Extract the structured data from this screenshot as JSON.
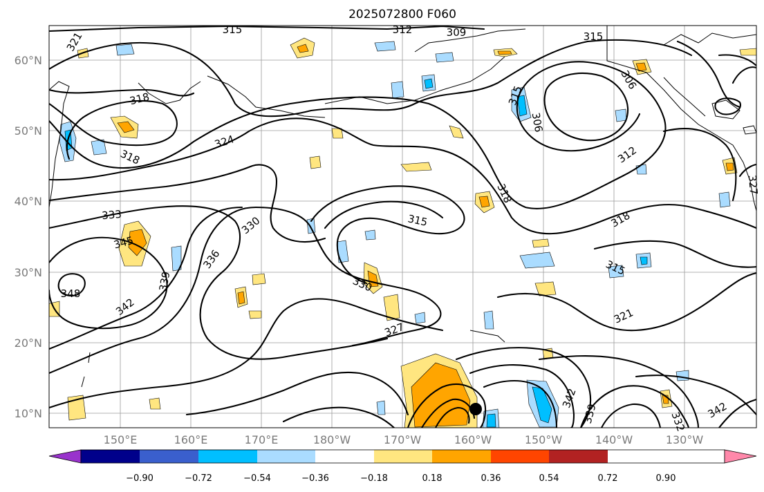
{
  "title": "2025072800 F060",
  "map": {
    "lat_ticks": [
      "60°N",
      "50°N",
      "40°N",
      "30°N",
      "20°N",
      "10°N"
    ],
    "lon_ticks": [
      "150°E",
      "160°E",
      "170°E",
      "180°W",
      "170°W",
      "160°W",
      "150°W",
      "140°W",
      "130°W"
    ],
    "contour_labels": [
      "321",
      "315",
      "312",
      "309",
      "315",
      "318",
      "306",
      "315",
      "306",
      "324",
      "318",
      "312",
      "327",
      "333",
      "330",
      "318",
      "315",
      "318",
      "345",
      "336",
      "315",
      "348",
      "339",
      "330",
      "342",
      "327",
      "321",
      "342",
      "339",
      "332",
      "342"
    ],
    "colors": {
      "contour": "#000000",
      "grid": "#9a9a9a",
      "tick_text": "#7a7a7a"
    }
  },
  "colorbar": {
    "ticks": [
      "−0.90",
      "−0.72",
      "−0.54",
      "−0.36",
      "−0.18",
      "0.18",
      "0.36",
      "0.54",
      "0.72",
      "0.90"
    ],
    "colors": [
      "#9933cc",
      "#00008b",
      "#3a5fcd",
      "#00bfff",
      "#aadcff",
      "#ffffff",
      "#ffe680",
      "#ffa500",
      "#ff4500",
      "#b22222",
      "#ff88aa"
    ]
  }
}
